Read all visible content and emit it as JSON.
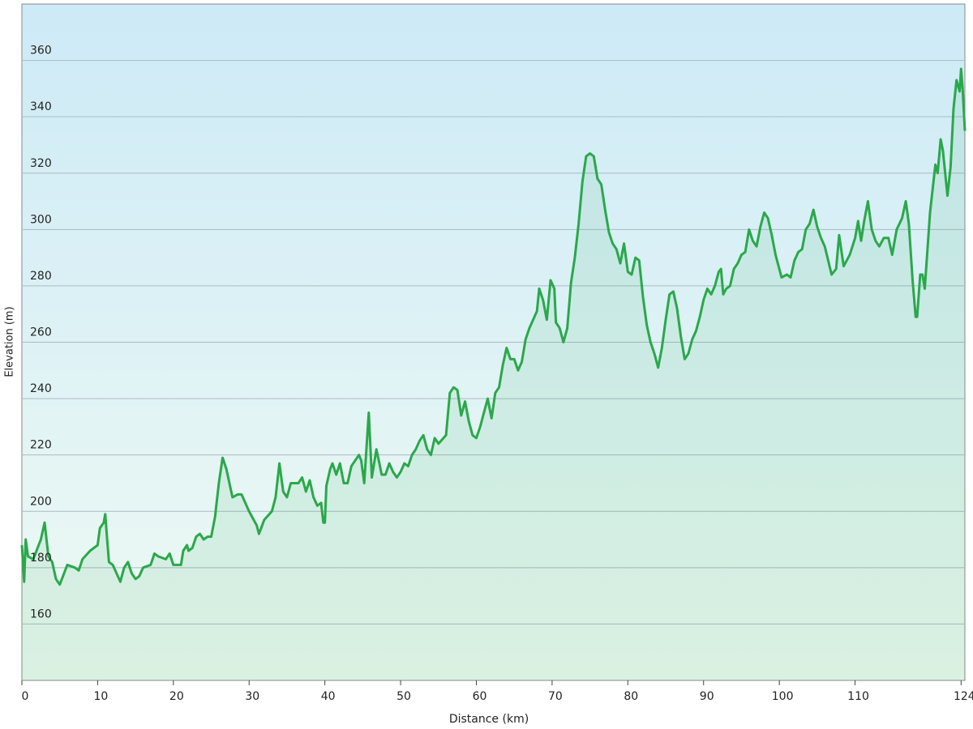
{
  "chart_data": {
    "type": "line",
    "xlabel": "Distance  (km)",
    "ylabel": "Elevation (m)",
    "color": "#2aa84a",
    "grid": true,
    "xlim": [
      0,
      124.5
    ],
    "xticks": [
      0,
      10,
      20,
      30,
      40,
      50,
      60,
      70,
      80,
      90,
      100,
      110,
      124
    ],
    "ylim": [
      140,
      380
    ],
    "yticks": [
      160,
      180,
      200,
      220,
      240,
      260,
      280,
      300,
      320,
      340,
      360
    ],
    "x": [
      0,
      0.3,
      0.5,
      0.8,
      1.5,
      2.5,
      3,
      3.5,
      4,
      4.5,
      5,
      6,
      7,
      7.5,
      8,
      9,
      10,
      10.3,
      10.8,
      11,
      11.2,
      11.5,
      12,
      13,
      13.5,
      14,
      14.5,
      15,
      15.5,
      16,
      17,
      17.5,
      18,
      19,
      19.5,
      20,
      21,
      21.3,
      21.8,
      22,
      22.5,
      23,
      23.5,
      24,
      24.5,
      25,
      25.5,
      26,
      26.5,
      27,
      27.8,
      28.5,
      29,
      30,
      31,
      31.3,
      32,
      33,
      33.5,
      34,
      34.5,
      35,
      35.5,
      36.5,
      37,
      37.5,
      38,
      38.5,
      39,
      39.5,
      39.8,
      40,
      40.2,
      40.7,
      41,
      41.5,
      42,
      42.5,
      43,
      43.5,
      44,
      44.5,
      44.8,
      45.2,
      45.8,
      46.2,
      46.8,
      47.2,
      47.5,
      48,
      48.5,
      49,
      49.5,
      50,
      50.5,
      51,
      51.5,
      52,
      52.5,
      53,
      53.5,
      54,
      54.5,
      55,
      56,
      56.5,
      57,
      57.5,
      58,
      58.5,
      59,
      59.5,
      60,
      60.5,
      61,
      61.5,
      62,
      62.5,
      63,
      63.5,
      64,
      64.5,
      65,
      65.5,
      66,
      66.5,
      67,
      68,
      68.3,
      68.8,
      69.3,
      69.8,
      70.3,
      70.5,
      71,
      71.5,
      72,
      72.5,
      73,
      73.5,
      74,
      74.5,
      75,
      75.5,
      76,
      76.5,
      77,
      77.5,
      78,
      78.5,
      79,
      79.5,
      80,
      80.5,
      81,
      81.5,
      82,
      82.5,
      83,
      83.5,
      84,
      84.5,
      85,
      85.5,
      86,
      86.5,
      87,
      87.5,
      88,
      88.5,
      89,
      89.5,
      90,
      90.5,
      91,
      91.5,
      92,
      92.3,
      92.6,
      93,
      93.5,
      94,
      94.5,
      95,
      95.5,
      96,
      96.5,
      97,
      97.5,
      98,
      98.5,
      99,
      99.5,
      100,
      100.3,
      101,
      101.5,
      102,
      102.5,
      103,
      103.5,
      104,
      104.5,
      105,
      105.5,
      106,
      106.9,
      107.5,
      107.9,
      108.5,
      109.3,
      110,
      110.4,
      110.8,
      111.2,
      111.7,
      112.2,
      112.7,
      113.2,
      113.8,
      114.4,
      114.9,
      115.5,
      116.2,
      116.7,
      117.1,
      117.6,
      118,
      118.2,
      118.6,
      118.9,
      119.2,
      119.9,
      120.6,
      120.9,
      121.3,
      121.6,
      122.2,
      122.6,
      123,
      123.4,
      123.8,
      124,
      124.2,
      124.5
    ],
    "values": [
      188,
      175,
      190,
      184,
      183,
      190,
      196,
      184,
      182,
      176,
      174,
      181,
      180,
      179,
      183,
      186,
      188,
      194,
      196,
      199,
      192,
      182,
      181,
      175,
      180,
      182,
      178,
      176,
      177,
      180,
      181,
      185,
      184,
      183,
      185,
      181,
      181,
      186,
      188,
      186,
      187,
      191,
      192,
      190,
      191,
      191,
      198,
      210,
      219,
      215,
      205,
      206,
      206,
      200,
      195,
      192,
      197,
      200,
      205,
      217,
      207,
      205,
      210,
      210,
      212,
      207,
      211,
      205,
      202,
      203,
      196,
      196,
      209,
      215,
      217,
      213,
      217,
      210,
      210,
      216,
      218,
      220,
      218,
      210,
      235,
      212,
      222,
      217,
      213,
      213,
      217,
      214,
      212,
      214,
      217,
      216,
      220,
      222,
      225,
      227,
      222,
      220,
      226,
      224,
      227,
      242,
      244,
      243,
      234,
      239,
      232,
      227,
      226,
      230,
      235,
      240,
      233,
      242,
      244,
      252,
      258,
      254,
      254,
      250,
      253,
      261,
      265,
      271,
      279,
      275,
      268,
      282,
      279,
      267,
      265,
      260,
      265,
      281,
      290,
      302,
      317,
      326,
      327,
      326,
      318,
      316,
      307,
      299,
      295,
      293,
      288,
      295,
      285,
      284,
      290,
      289,
      276,
      266,
      260,
      256,
      251,
      258,
      268,
      277,
      278,
      272,
      262,
      254,
      256,
      261,
      264,
      269,
      275,
      279,
      277,
      280,
      285,
      286,
      277,
      279,
      280,
      286,
      288,
      291,
      292,
      300,
      296,
      294,
      301,
      306,
      304,
      298,
      291,
      286,
      283,
      284,
      283,
      289,
      292,
      293,
      300,
      302,
      307,
      301,
      297,
      294,
      284,
      286,
      298,
      287,
      291,
      297,
      303,
      296,
      303,
      310,
      300,
      296,
      294,
      297,
      297,
      291,
      300,
      304,
      310,
      302,
      282,
      269,
      269,
      284,
      284,
      279,
      306,
      323,
      320,
      332,
      328,
      312,
      322,
      343,
      353,
      349,
      357,
      350,
      335
    ]
  }
}
